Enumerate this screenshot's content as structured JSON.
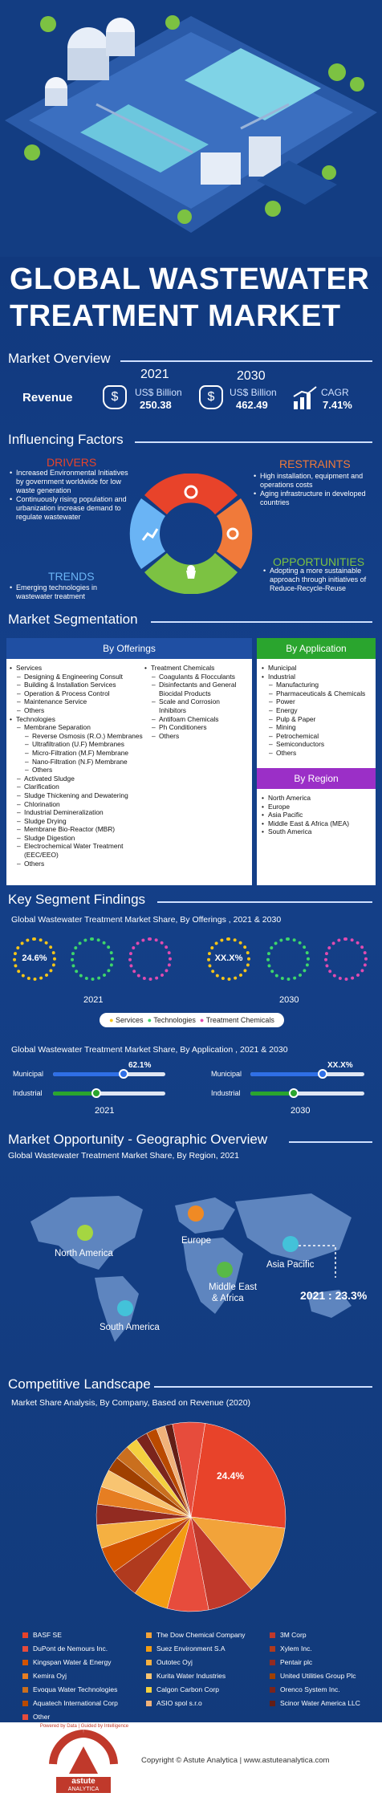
{
  "title_line1": "GLOBAL WASTEWATER",
  "title_line2": "TREATMENT MARKET",
  "overview": {
    "heading": "Market Overview",
    "year1": "2021",
    "year2": "2030",
    "revenue_label": "Revenue",
    "unit": "US$ Billion",
    "value1": "250.38",
    "value2": "462.49",
    "cagr_label": "CAGR",
    "cagr_value": "7.41%"
  },
  "factors": {
    "heading": "Influencing Factors",
    "drivers_title": "DRIVERS",
    "drivers": [
      "Increased Environmental Initiatives by government worldwide for low waste generation",
      "Continuously rising population and urbanization increase demand to regulate wastewater"
    ],
    "restraints_title": "RESTRAINTS",
    "restraints": [
      "High installation, equipment and operations costs",
      "Aging infrastructure in developed countries"
    ],
    "trends_title": "TRENDS",
    "trends": [
      "Emerging technologies in wastewater treatment"
    ],
    "opportunities_title": "OPPORTUNITIES",
    "opportunities": [
      "Adopting a more sustainable approach through initiatives of Reduce-Recycle-Reuse"
    ]
  },
  "segmentation": {
    "heading": "Market Segmentation",
    "offerings_title": "By Offerings",
    "application_title": "By Application",
    "region_title": "By Region",
    "offerings_left": [
      {
        "l": 1,
        "t": "Services"
      },
      {
        "l": 2,
        "t": "Designing & Engineering Consult"
      },
      {
        "l": 2,
        "t": "Building & Installation Services"
      },
      {
        "l": 2,
        "t": "Operation & Process Control"
      },
      {
        "l": 2,
        "t": "Maintenance Service"
      },
      {
        "l": 2,
        "t": "Others"
      },
      {
        "l": 1,
        "t": "Technologies"
      },
      {
        "l": 2,
        "t": "Membrane Separation"
      },
      {
        "l": 3,
        "t": "Reverse Osmosis (R.O.) Membranes"
      },
      {
        "l": 3,
        "t": "Ultrafiltration (U.F) Membranes"
      },
      {
        "l": 3,
        "t": "Micro-Filtration (M.F) Membrane"
      },
      {
        "l": 3,
        "t": "Nano-Filtration (N.F) Membrane"
      },
      {
        "l": 3,
        "t": "Others"
      },
      {
        "l": 2,
        "t": "Activated Sludge"
      },
      {
        "l": 2,
        "t": "Clarification"
      },
      {
        "l": 2,
        "t": "Sludge Thickening and Dewatering"
      },
      {
        "l": 2,
        "t": "Chlorination"
      },
      {
        "l": 2,
        "t": "Industrial Demineralization"
      },
      {
        "l": 2,
        "t": "Sludge Drying"
      },
      {
        "l": 2,
        "t": "Membrane Bio-Reactor (MBR)"
      },
      {
        "l": 2,
        "t": "Sludge Digestion"
      },
      {
        "l": 2,
        "t": "Electrochemical Water Treatment (EEC/EEO)"
      },
      {
        "l": 2,
        "t": "Others"
      }
    ],
    "offerings_right": [
      {
        "l": 1,
        "t": "Treatment Chemicals"
      },
      {
        "l": 2,
        "t": "Coagulants & Flocculants"
      },
      {
        "l": 2,
        "t": "Disinfectants and General Biocidal Products"
      },
      {
        "l": 2,
        "t": "Scale and Corrosion Inhibitors"
      },
      {
        "l": 2,
        "t": "Antifoam Chemicals"
      },
      {
        "l": 2,
        "t": "Ph Conditioners"
      },
      {
        "l": 2,
        "t": "Others"
      }
    ],
    "application": [
      {
        "l": 1,
        "t": "Municipal"
      },
      {
        "l": 1,
        "t": "Industrial"
      },
      {
        "l": 2,
        "t": "Manufacturing"
      },
      {
        "l": 2,
        "t": "Pharmaceuticals & Chemicals"
      },
      {
        "l": 2,
        "t": "Power"
      },
      {
        "l": 2,
        "t": "Energy"
      },
      {
        "l": 2,
        "t": "Pulp & Paper"
      },
      {
        "l": 2,
        "t": "Mining"
      },
      {
        "l": 2,
        "t": "Petrochemical"
      },
      {
        "l": 2,
        "t": "Semiconductors"
      },
      {
        "l": 2,
        "t": "Others"
      }
    ],
    "region": [
      {
        "l": 1,
        "t": "North America"
      },
      {
        "l": 1,
        "t": "Europe"
      },
      {
        "l": 1,
        "t": "Asia Pacific"
      },
      {
        "l": 1,
        "t": "Middle East & Africa (MEA)"
      },
      {
        "l": 1,
        "t": "South America"
      }
    ]
  },
  "findings": {
    "heading": "Key Segment Findings",
    "offerings_chart_title": "Global Wastewater Treatment Market Share, By Offerings , 2021 & 2030",
    "ring_2021_label": "24.6%",
    "ring_2030_label": "XX.X%",
    "year1": "2021",
    "year2": "2030",
    "legend": [
      "Services",
      "Technologies",
      "Treatment Chemicals"
    ],
    "application_chart_title": "Global Wastewater Treatment Market Share, By Application , 2021 & 2030",
    "municipal": "Municipal",
    "industrial": "Industrial",
    "bar_2021_label": "62.1%",
    "bar_2030_label": "XX.X%"
  },
  "geo": {
    "heading": "Market Opportunity - Geographic Overview",
    "subtitle": "Global Wastewater Treatment Market Share, By Region, 2021",
    "na": "North America",
    "eu": "Europe",
    "mea_1": "Middle East",
    "mea_2": "& Africa",
    "apac": "Asia Pacific",
    "sa": "South America",
    "callout": "2021 : 23.3%"
  },
  "competitive": {
    "heading": "Competitive Landscape",
    "subtitle": "Market Share Analysis, By Company, Based on Revenue (2020)",
    "pie_label": "24.4%",
    "companies": [
      {
        "name": "BASF SE",
        "color": "#e8432a"
      },
      {
        "name": "The Dow Chemical Company",
        "color": "#f2a33a"
      },
      {
        "name": "3M Corp",
        "color": "#c0392b"
      },
      {
        "name": "DuPont de Nemours Inc.",
        "color": "#e74c3c"
      },
      {
        "name": "Suez Environment S.A",
        "color": "#f39c12"
      },
      {
        "name": "Xylem Inc.",
        "color": "#b03a1e"
      },
      {
        "name": "Kingspan Water & Energy",
        "color": "#d35400"
      },
      {
        "name": "Outotec Oyj",
        "color": "#f5b041"
      },
      {
        "name": "Pentair plc",
        "color": "#922b21"
      },
      {
        "name": "Kemira Oyj",
        "color": "#e67e22"
      },
      {
        "name": "Kurita Water Industries",
        "color": "#f8c471"
      },
      {
        "name": "United Utilities Group Plc",
        "color": "#a04000"
      },
      {
        "name": "Evoqua Water Technologies",
        "color": "#ca6f1e"
      },
      {
        "name": "Calgon Carbon Corp",
        "color": "#f4d03f"
      },
      {
        "name": "Orenco System Inc.",
        "color": "#7b241c"
      },
      {
        "name": "Aquatech International Corp",
        "color": "#ba4a00"
      },
      {
        "name": "ASIO spol s.r.o",
        "color": "#f0b27a"
      },
      {
        "name": "Scinor Water America LLC",
        "color": "#641e16"
      },
      {
        "name": "Other",
        "color": "#e74c3c"
      }
    ]
  },
  "footer": {
    "copyright": "Copyright © Astute Analytica | www.astuteanalytica.com",
    "brand": "astute",
    "brand2": "ANALYTICA",
    "tagline": "Powered by Data | Guided by Intelligence"
  }
}
